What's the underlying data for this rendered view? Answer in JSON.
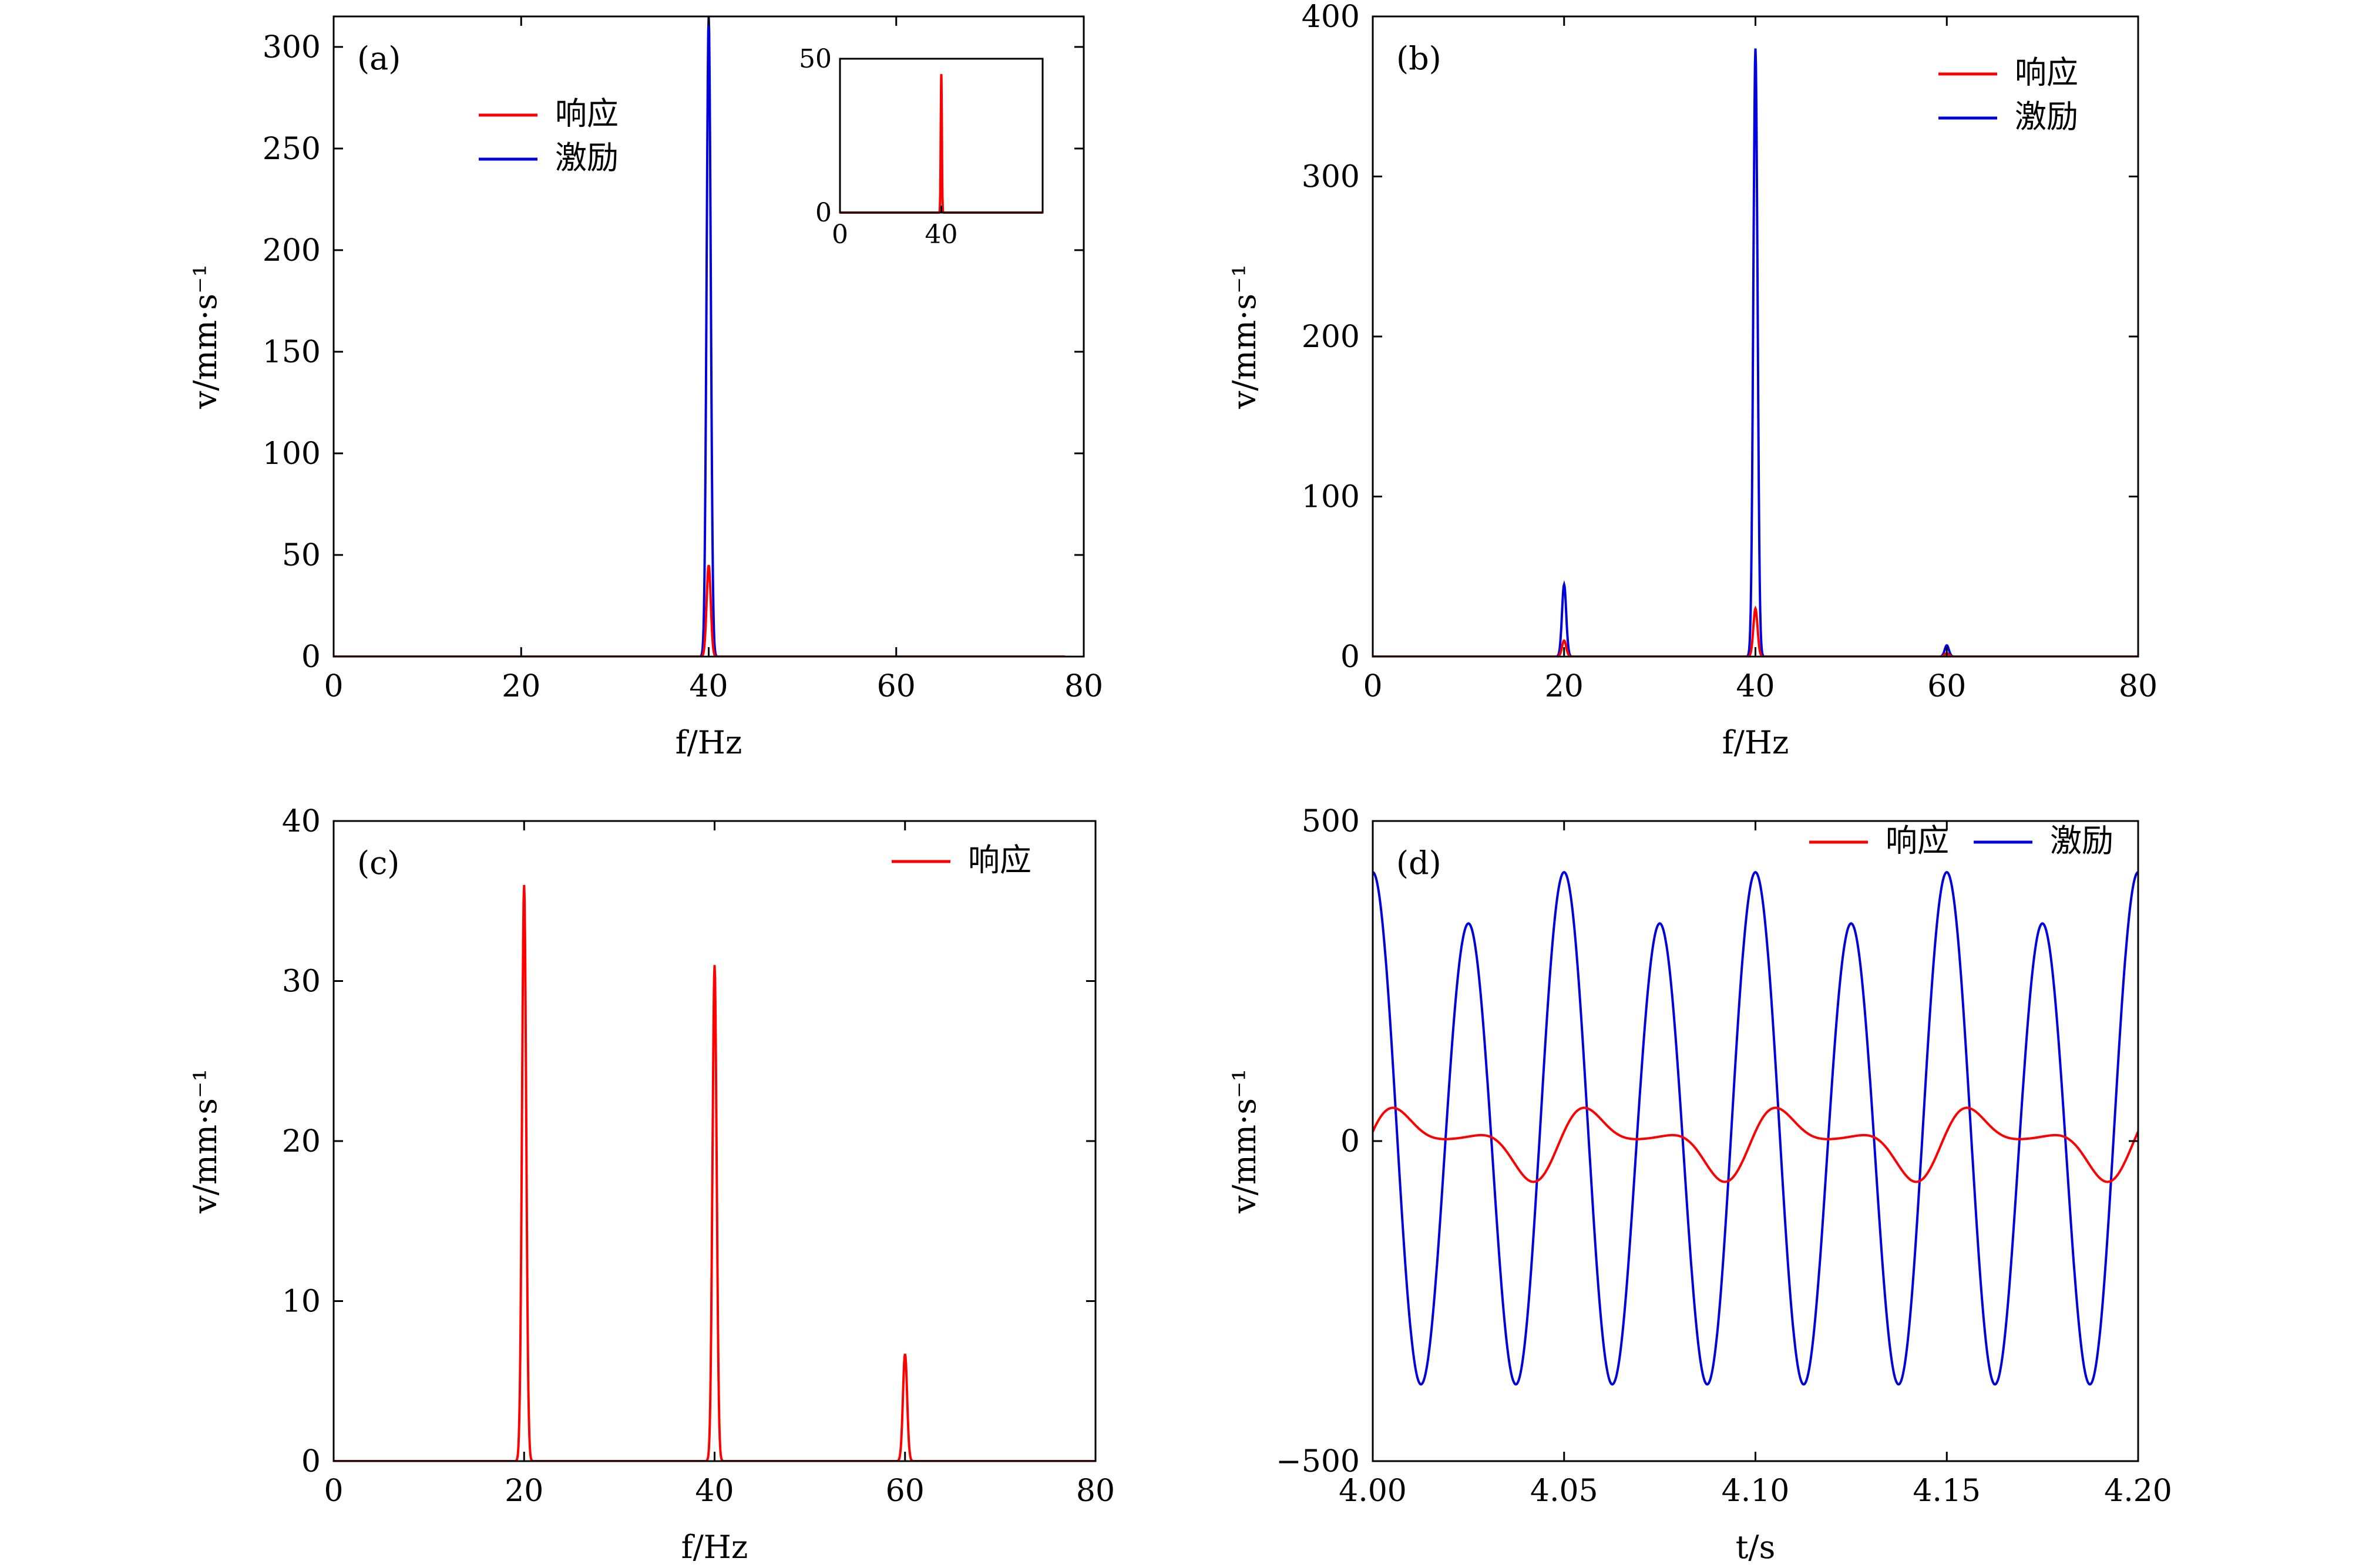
{
  "colors": {
    "response": "#ff0000",
    "excitation": "#0000dd"
  },
  "chart_data": [
    {
      "panel": "(a)",
      "type": "line",
      "xlabel": "f/Hz",
      "ylabel": "v/mm·s⁻¹",
      "xlim": [
        0,
        80
      ],
      "ylim": [
        0,
        315
      ],
      "xticks": [
        "0",
        "20",
        "40",
        "60",
        "80"
      ],
      "yticks": [
        "0",
        "50",
        "100",
        "150",
        "200",
        "250",
        "300"
      ],
      "legend": [
        "响应",
        "激励"
      ],
      "legend_position": "upper-left",
      "series": [
        {
          "name": "响应",
          "color": "red",
          "peaks": [
            [
              40,
              45
            ]
          ],
          "xmax": 78
        },
        {
          "name": "激励",
          "color": "blue",
          "peaks": [
            [
              40,
              315
            ]
          ],
          "xmax": 78
        }
      ],
      "inset": {
        "type": "line",
        "xlim": [
          0,
          80
        ],
        "ylim": [
          0,
          50
        ],
        "xticks": [
          "0",
          "40"
        ],
        "yticks": [
          "0",
          "50"
        ],
        "series": [
          {
            "name": "响应",
            "color": "red",
            "peaks": [
              [
                40,
                45
              ]
            ]
          }
        ]
      }
    },
    {
      "panel": "(b)",
      "type": "line",
      "xlabel": "f/Hz",
      "ylabel": "v/mm·s⁻¹",
      "xlim": [
        0,
        80
      ],
      "ylim": [
        0,
        400
      ],
      "xticks": [
        "0",
        "20",
        "40",
        "60",
        "80"
      ],
      "yticks": [
        "0",
        "100",
        "200",
        "300",
        "400"
      ],
      "legend": [
        "响应",
        "激励"
      ],
      "legend_position": "upper-right",
      "series": [
        {
          "name": "响应",
          "color": "red",
          "peaks": [
            [
              20,
              10
            ],
            [
              40,
              30
            ],
            [
              60,
              2
            ]
          ],
          "xmax": 80
        },
        {
          "name": "激励",
          "color": "blue",
          "peaks": [
            [
              20,
              45
            ],
            [
              40,
              380
            ],
            [
              60,
              7
            ]
          ],
          "xmax": 80
        }
      ]
    },
    {
      "panel": "(c)",
      "type": "line",
      "xlabel": "f/Hz",
      "ylabel": "v/mm·s⁻¹",
      "xlim": [
        0,
        80
      ],
      "ylim": [
        0,
        40
      ],
      "xticks": [
        "0",
        "20",
        "40",
        "60",
        "80"
      ],
      "yticks": [
        "0",
        "10",
        "20",
        "30",
        "40"
      ],
      "legend": [
        "响应"
      ],
      "legend_position": "upper-right",
      "series": [
        {
          "name": "响应",
          "color": "red",
          "peaks": [
            [
              20,
              36
            ],
            [
              40,
              31
            ],
            [
              60,
              6.7
            ]
          ],
          "xmax": 80
        }
      ]
    },
    {
      "panel": "(d)",
      "type": "line",
      "xlabel": "t/s",
      "ylabel": "v/mm·s⁻¹",
      "xlim": [
        4.0,
        4.2
      ],
      "ylim": [
        -500,
        500
      ],
      "xticks": [
        "4.00",
        "4.05",
        "4.10",
        "4.15",
        "4.20"
      ],
      "yticks": [
        "−500",
        "0",
        "500"
      ],
      "legend": [
        "响应",
        "激励"
      ],
      "legend_position": "top-right",
      "series": [
        {
          "name": "响应",
          "color": "red",
          "components": [
            [
              20,
              33
            ],
            [
              40,
              30
            ],
            [
              60,
              7
            ]
          ]
        },
        {
          "name": "激励",
          "color": "blue",
          "components": [
            [
              20,
              35
            ],
            [
              40,
              380
            ],
            [
              60,
              5
            ]
          ]
        }
      ]
    }
  ]
}
